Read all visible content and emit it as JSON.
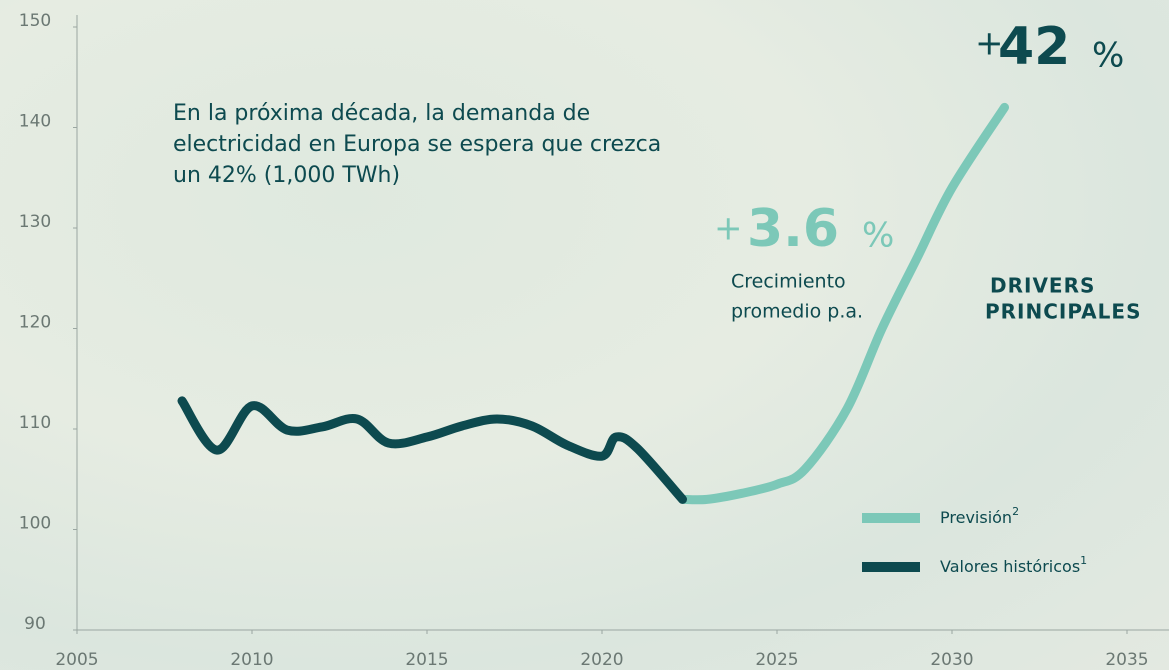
{
  "chart_data": {
    "type": "line",
    "xlim": [
      2005,
      2035
    ],
    "xticks": [
      2005,
      2010,
      2015,
      2020,
      2025,
      2030,
      2035
    ],
    "ylim": [
      90,
      150
    ],
    "yticks": [
      90,
      100,
      110,
      120,
      130,
      140,
      150
    ],
    "series": [
      {
        "name": "Previsión",
        "note": "2",
        "color": "#7cc8b8",
        "x": [
          2022.3,
          2023,
          2024,
          2025,
          2025.8,
          2027,
          2028,
          2029,
          2030,
          2031.5
        ],
        "values": [
          103,
          103,
          103.6,
          104.5,
          106,
          112,
          120,
          127,
          134,
          142
        ]
      },
      {
        "name": "Valores históricos",
        "note": "1",
        "color": "#0d4a4f",
        "x": [
          2008,
          2009,
          2010,
          2011,
          2012,
          2013,
          2013.9,
          2015,
          2016,
          2017,
          2018,
          2019,
          2020,
          2020.4,
          2021,
          2022.3
        ],
        "values": [
          112.8,
          107.9,
          112.3,
          109.9,
          110.2,
          111,
          108.6,
          109.2,
          110.3,
          111,
          110.3,
          108.4,
          107.3,
          109.2,
          108.1,
          103
        ]
      }
    ],
    "annotation": "En la próxima década, la demanda de electricidad en Europa se espera que crezca un 42% (1,000 TWh)",
    "total_growth": {
      "prefix": "+",
      "value": "42",
      "suffix": "%"
    },
    "annual_growth": {
      "prefix": "+",
      "value": "3.6",
      "suffix": "%",
      "caption": [
        "Crecimiento",
        "promedio p.a."
      ]
    },
    "drivers": [
      "DRIVERS",
      "PRINCIPALES"
    ]
  }
}
